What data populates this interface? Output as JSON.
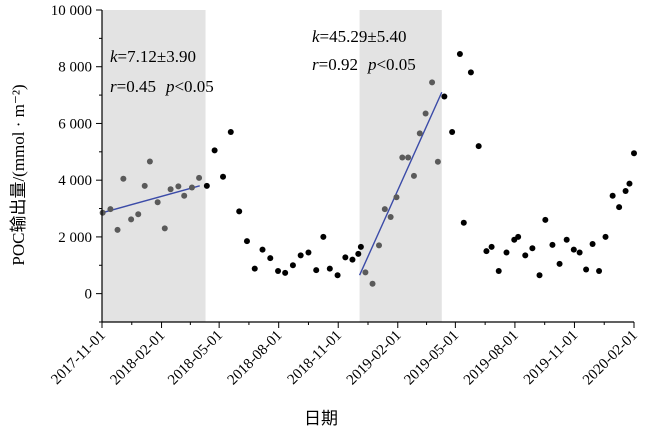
{
  "chart_data": {
    "type": "scatter",
    "xlabel": "日期",
    "ylabel": "POC输出量/(mmol · m⁻²)",
    "ylim": [
      -1000,
      10000
    ],
    "xlim": [
      "2017-11-01",
      "2020-02-01"
    ],
    "x_ticks": [
      "2017-11-01",
      "2018-02-01",
      "2018-05-01",
      "2018-08-01",
      "2018-11-01",
      "2019-02-01",
      "2019-05-01",
      "2019-08-01",
      "2019-11-01",
      "2020-02-01"
    ],
    "y_ticks": [
      0,
      2000,
      4000,
      6000,
      8000,
      10000
    ],
    "y_tick_labels": [
      "0",
      "2 000",
      "4 000",
      "6 000",
      "8 000",
      "10 000"
    ],
    "grid": false,
    "shaded_periods": [
      {
        "start": "2017-11-01",
        "end": "2018-04-10"
      },
      {
        "start": "2018-12-04",
        "end": "2019-04-10"
      }
    ],
    "annotations": [
      {
        "k_label": "k",
        "k_value": "=7.12±3.90",
        "r_label": "r",
        "r_value": "=0.45",
        "p_label": "p",
        "p_value": "<0.05"
      },
      {
        "k_label": "k",
        "k_value": "=45.29±5.40",
        "r_label": "r",
        "r_value": "=0.92",
        "p_label": "p",
        "p_value": "<0.05"
      }
    ],
    "fit_lines": [
      {
        "x": [
          "2017-11-01",
          "2018-04-01"
        ],
        "y": [
          2850,
          3800
        ]
      },
      {
        "x": [
          "2018-12-04",
          "2019-04-10"
        ],
        "y": [
          650,
          7100
        ]
      }
    ],
    "points_in_period": [
      {
        "x": "2017-11-02",
        "y": 2850
      },
      {
        "x": "2017-11-14",
        "y": 2980
      },
      {
        "x": "2017-11-25",
        "y": 2250
      },
      {
        "x": "2017-12-04",
        "y": 4050
      },
      {
        "x": "2017-12-16",
        "y": 2620
      },
      {
        "x": "2017-12-27",
        "y": 2800
      },
      {
        "x": "2018-01-06",
        "y": 3800
      },
      {
        "x": "2018-01-14",
        "y": 4660
      },
      {
        "x": "2018-01-26",
        "y": 3220
      },
      {
        "x": "2018-02-06",
        "y": 2300
      },
      {
        "x": "2018-02-15",
        "y": 3680
      },
      {
        "x": "2018-02-27",
        "y": 3780
      },
      {
        "x": "2018-03-08",
        "y": 3450
      },
      {
        "x": "2018-03-20",
        "y": 3740
      },
      {
        "x": "2018-03-31",
        "y": 4080
      },
      {
        "x": "2018-12-13",
        "y": 750
      },
      {
        "x": "2018-12-24",
        "y": 350
      },
      {
        "x": "2019-01-03",
        "y": 1700
      },
      {
        "x": "2019-01-12",
        "y": 2980
      },
      {
        "x": "2019-01-21",
        "y": 2700
      },
      {
        "x": "2019-01-30",
        "y": 3400
      },
      {
        "x": "2019-02-08",
        "y": 4800
      },
      {
        "x": "2019-02-17",
        "y": 4800
      },
      {
        "x": "2019-02-26",
        "y": 4150
      },
      {
        "x": "2019-03-07",
        "y": 5650
      },
      {
        "x": "2019-03-16",
        "y": 6350
      },
      {
        "x": "2019-03-26",
        "y": 7450
      },
      {
        "x": "2019-04-04",
        "y": 4650
      }
    ],
    "points_outside": [
      {
        "x": "2018-04-12",
        "y": 3800
      },
      {
        "x": "2018-04-24",
        "y": 5050
      },
      {
        "x": "2018-05-07",
        "y": 4120
      },
      {
        "x": "2018-05-19",
        "y": 5700
      },
      {
        "x": "2018-06-01",
        "y": 2900
      },
      {
        "x": "2018-06-13",
        "y": 1850
      },
      {
        "x": "2018-06-25",
        "y": 880
      },
      {
        "x": "2018-07-07",
        "y": 1550
      },
      {
        "x": "2018-07-19",
        "y": 1250
      },
      {
        "x": "2018-07-31",
        "y": 800
      },
      {
        "x": "2018-08-11",
        "y": 730
      },
      {
        "x": "2018-08-23",
        "y": 1000
      },
      {
        "x": "2018-09-04",
        "y": 1350
      },
      {
        "x": "2018-09-16",
        "y": 1450
      },
      {
        "x": "2018-09-28",
        "y": 830
      },
      {
        "x": "2018-10-09",
        "y": 2000
      },
      {
        "x": "2018-10-19",
        "y": 880
      },
      {
        "x": "2018-10-31",
        "y": 650
      },
      {
        "x": "2018-11-12",
        "y": 1280
      },
      {
        "x": "2018-11-23",
        "y": 1200
      },
      {
        "x": "2018-12-02",
        "y": 1400
      },
      {
        "x": "2018-12-06",
        "y": 1650
      },
      {
        "x": "2019-04-14",
        "y": 6950
      },
      {
        "x": "2019-04-26",
        "y": 5700
      },
      {
        "x": "2019-05-08",
        "y": 8450
      },
      {
        "x": "2019-05-14",
        "y": 2500
      },
      {
        "x": "2019-05-25",
        "y": 7800
      },
      {
        "x": "2019-06-06",
        "y": 5200
      },
      {
        "x": "2019-06-18",
        "y": 1500
      },
      {
        "x": "2019-06-26",
        "y": 1650
      },
      {
        "x": "2019-07-07",
        "y": 800
      },
      {
        "x": "2019-07-19",
        "y": 1450
      },
      {
        "x": "2019-07-31",
        "y": 1900
      },
      {
        "x": "2019-08-06",
        "y": 2000
      },
      {
        "x": "2019-08-17",
        "y": 1350
      },
      {
        "x": "2019-08-28",
        "y": 1600
      },
      {
        "x": "2019-09-08",
        "y": 650
      },
      {
        "x": "2019-09-17",
        "y": 2600
      },
      {
        "x": "2019-09-28",
        "y": 1720
      },
      {
        "x": "2019-10-09",
        "y": 1050
      },
      {
        "x": "2019-10-20",
        "y": 1900
      },
      {
        "x": "2019-10-31",
        "y": 1550
      },
      {
        "x": "2019-11-09",
        "y": 1450
      },
      {
        "x": "2019-11-19",
        "y": 850
      },
      {
        "x": "2019-11-29",
        "y": 1750
      },
      {
        "x": "2019-12-09",
        "y": 800
      },
      {
        "x": "2019-12-19",
        "y": 2000
      },
      {
        "x": "2019-12-30",
        "y": 3450
      },
      {
        "x": "2020-01-09",
        "y": 3050
      },
      {
        "x": "2020-01-19",
        "y": 3620
      },
      {
        "x": "2020-01-25",
        "y": 3880
      },
      {
        "x": "2020-02-01",
        "y": 4950
      }
    ],
    "colors": {
      "shade": "#e3e3e3",
      "point_in_period": "#5a5a5a",
      "point_outside": "#000000",
      "fit_line": "#3b4ba8",
      "axis": "#000000"
    }
  }
}
